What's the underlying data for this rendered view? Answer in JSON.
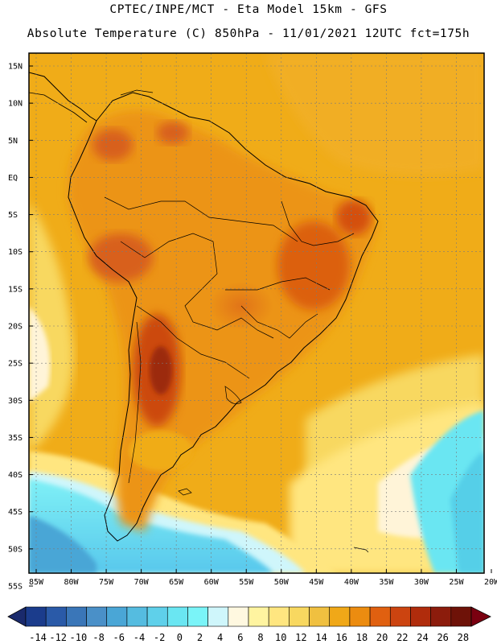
{
  "header": {
    "line1": "CPTEC/INPE/MCT -  Eta Model 15km - GFS",
    "line2": "Absolute Temperature (C) 850hPa - 11/01/2021 12UTC fct=175h"
  },
  "map": {
    "lat_labels": [
      "15N",
      "10N",
      "5N",
      "EQ",
      "5S",
      "10S",
      "15S",
      "20S",
      "25S",
      "30S",
      "35S",
      "40S",
      "45S",
      "50S",
      "55S"
    ],
    "lon_labels": [
      "85W",
      "80W",
      "75W",
      "70W",
      "65W",
      "60W",
      "55W",
      "50W",
      "45W",
      "40W",
      "35W",
      "30W",
      "25W",
      "20W"
    ],
    "lat_range": [
      15,
      -55
    ],
    "lon_range": [
      -85,
      -20
    ]
  },
  "colorbar": {
    "labels": [
      "-14",
      "-12",
      "-10",
      "-8",
      "-6",
      "-4",
      "-2",
      "0",
      "2",
      "4",
      "6",
      "8",
      "10",
      "12",
      "14",
      "16",
      "18",
      "20",
      "22",
      "24",
      "26",
      "28"
    ],
    "colors": [
      "#1b3c8c",
      "#2a5aa8",
      "#3a76b8",
      "#4a90c8",
      "#4aa6d6",
      "#55bce0",
      "#5fd0ea",
      "#6ae6f2",
      "#7af4f8",
      "#cff6fb",
      "#fff8e0",
      "#fff4a0",
      "#ffe680",
      "#f8d860",
      "#f0c040",
      "#f0a818",
      "#ec8c10",
      "#e06010",
      "#cc4410",
      "#b02c0c",
      "#8c1c0c",
      "#6e1208"
    ],
    "low_arrow_color": "#1a2a6c",
    "high_arrow_color": "#7a0010"
  }
}
